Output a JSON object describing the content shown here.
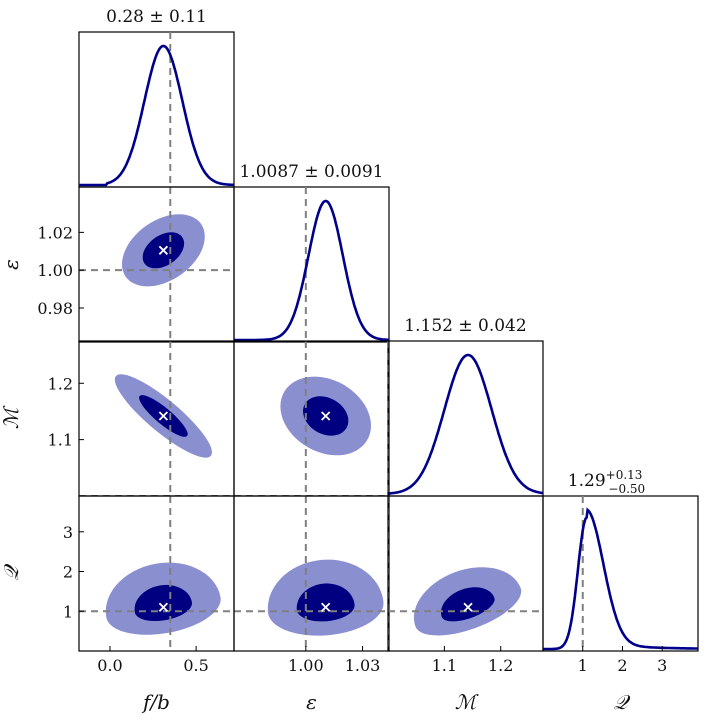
{
  "colors": {
    "density_line": "#00008b",
    "contour_inner": "#000080",
    "contour_outer": "#8a8fd0",
    "truth_line": "#808080",
    "mean_marker": "#ffffff",
    "frame": "#000000"
  },
  "chart_data": {
    "type": "corner",
    "parameters": [
      {
        "label": "f/b",
        "range": [
          -0.18,
          0.72
        ],
        "ticks": [
          0.0,
          0.5
        ],
        "tick_labels": [
          "0.0",
          "0.5"
        ],
        "truth": 0.35,
        "mean": 0.31,
        "sd": 0.11,
        "title": "0.28 ± 0.11"
      },
      {
        "label": "ε",
        "range": [
          0.962,
          1.044
        ],
        "ticks": [
          1.0,
          1.03
        ],
        "tick_labels": [
          "1.00",
          "1.03"
        ],
        "y_ticks": [
          0.98,
          1.0,
          1.02
        ],
        "y_tick_labels": [
          "0.98",
          "1.00",
          "1.02"
        ],
        "truth": 1.0,
        "mean": 1.0105,
        "sd": 0.0091,
        "title": "1.0087 ± 0.0091"
      },
      {
        "label": "ℳ",
        "range": [
          1.0,
          1.275
        ],
        "ticks": [
          1.1,
          1.2
        ],
        "tick_labels": [
          "1.1",
          "1.2"
        ],
        "y_ticks": [
          1.1,
          1.2
        ],
        "y_tick_labels": [
          "1.1",
          "1.2"
        ],
        "truth": 1.0,
        "mean": 1.142,
        "sd": 0.042,
        "title": "1.152 ± 0.042"
      },
      {
        "label": "𝒬",
        "range": [
          0.0,
          3.9
        ],
        "ticks": [
          1,
          2,
          3
        ],
        "tick_labels": [
          "1",
          "2",
          "3"
        ],
        "y_ticks": [
          1,
          2,
          3
        ],
        "y_tick_labels": [
          "1",
          "2",
          "3"
        ],
        "truth": 1.0,
        "mean": 1.1,
        "median": 1.29,
        "err_plus": 0.13,
        "err_minus": 0.5,
        "title_main": "1.29",
        "title_sup": "+0.13",
        "title_sub": "−0.50"
      }
    ],
    "contour_levels": [
      "1σ",
      "2σ"
    ]
  }
}
